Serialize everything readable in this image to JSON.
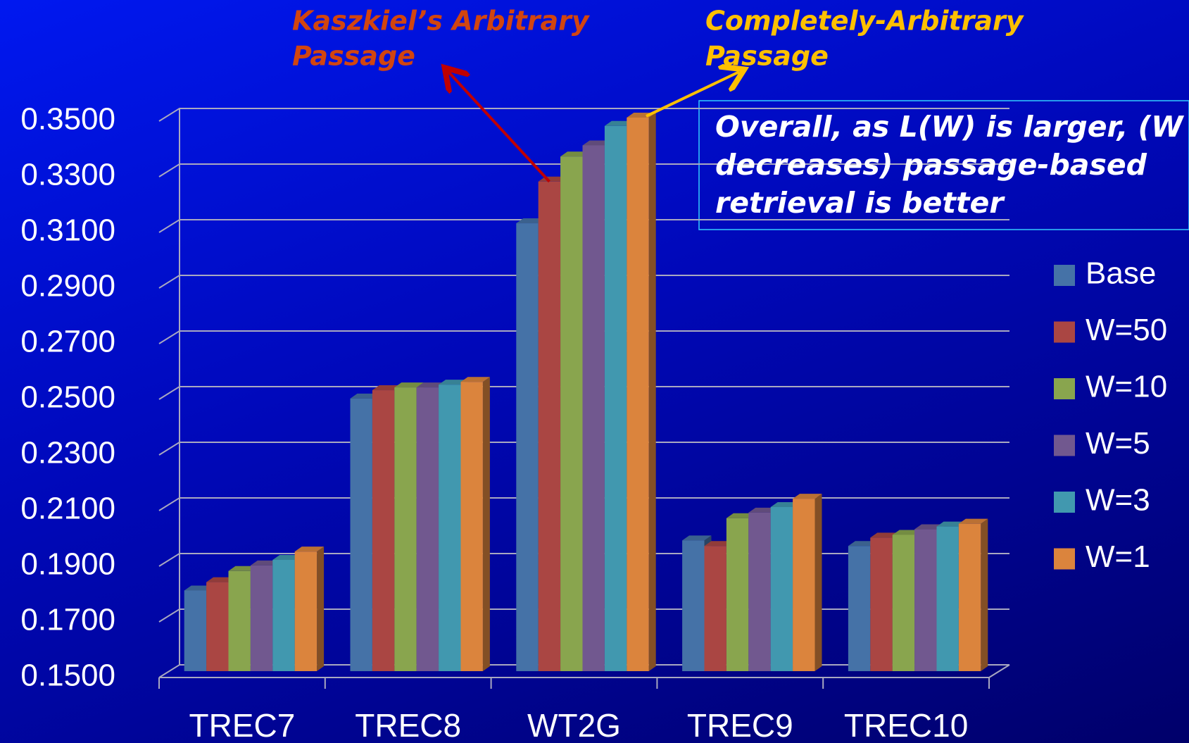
{
  "chart_data": {
    "type": "bar",
    "categories": [
      "TREC7",
      "TREC8",
      "WT2G",
      "TREC9",
      "TREC10"
    ],
    "series": [
      {
        "name": "Base",
        "color": "#4572a7",
        "values": [
          0.179,
          0.248,
          0.311,
          0.197,
          0.195
        ]
      },
      {
        "name": "W=50",
        "color": "#aa4643",
        "values": [
          0.182,
          0.251,
          0.326,
          0.195,
          0.198
        ]
      },
      {
        "name": "W=10",
        "color": "#89a54e",
        "values": [
          0.186,
          0.252,
          0.335,
          0.205,
          0.199
        ]
      },
      {
        "name": "W=5",
        "color": "#71588f",
        "values": [
          0.188,
          0.252,
          0.339,
          0.207,
          0.201
        ]
      },
      {
        "name": "W=3",
        "color": "#4198af",
        "values": [
          0.19,
          0.253,
          0.346,
          0.209,
          0.202
        ]
      },
      {
        "name": "W=1",
        "color": "#db843d",
        "values": [
          0.193,
          0.254,
          0.349,
          0.212,
          0.203
        ]
      }
    ],
    "ylim": [
      0.15,
      0.35
    ],
    "yticks": [
      {
        "value": 0.15,
        "label": "0.1500"
      },
      {
        "value": 0.17,
        "label": "0.1700"
      },
      {
        "value": 0.19,
        "label": "0.1900"
      },
      {
        "value": 0.21,
        "label": "0.2100"
      },
      {
        "value": 0.23,
        "label": "0.2300"
      },
      {
        "value": 0.25,
        "label": "0.2500"
      },
      {
        "value": 0.27,
        "label": "0.2700"
      },
      {
        "value": 0.29,
        "label": "0.2900"
      },
      {
        "value": 0.31,
        "label": "0.3100"
      },
      {
        "value": 0.33,
        "label": "0.3300"
      },
      {
        "value": 0.35,
        "label": "0.3500"
      }
    ],
    "grid": true,
    "legend": "right",
    "annotations": [
      {
        "lines": [
          "Kaszkiel’s Arbitrary",
          "Passage"
        ],
        "color": "#d2450f"
      },
      {
        "lines": [
          "Completely-Arbitrary",
          "Passage"
        ],
        "color": "#ffc000"
      },
      {
        "lines": [
          "Overall, as L(W) is larger, (W",
          "decreases) passage-based",
          "retrieval is better"
        ],
        "color": "#ffffff"
      }
    ]
  }
}
